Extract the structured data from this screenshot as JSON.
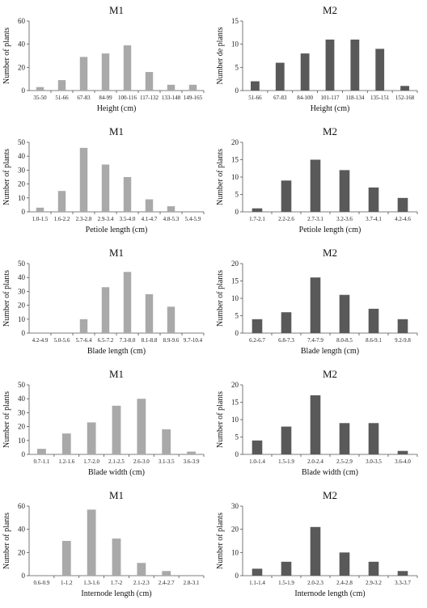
{
  "chart_data": [
    {
      "type": "bar",
      "title": "M1",
      "ylabel": "Number of plants",
      "xlabel": "Height (cm)",
      "ylim": [
        0,
        60
      ],
      "yticks": [
        0,
        20,
        40,
        60
      ],
      "color": "#a9a9a9",
      "categories": [
        "35-50",
        "51-66",
        "67-83",
        "84-99",
        "100-116",
        "117-132",
        "133-148",
        "149-165"
      ],
      "values": [
        3,
        9,
        29,
        32,
        39,
        16,
        5,
        5
      ]
    },
    {
      "type": "bar",
      "title": "M2",
      "ylabel": "Number de plants",
      "xlabel": "Height (cm)",
      "ylim": [
        0,
        15
      ],
      "yticks": [
        0,
        5,
        10,
        15
      ],
      "color": "#595959",
      "categories": [
        "51-66",
        "67-83",
        "84-100",
        "101-117",
        "118-134",
        "135-151",
        "152-168"
      ],
      "values": [
        2,
        6,
        8,
        11,
        11,
        9,
        1
      ]
    },
    {
      "type": "bar",
      "title": "M1",
      "ylabel": "Number of plants",
      "xlabel": "Petiole length (cm)",
      "ylim": [
        0,
        50
      ],
      "yticks": [
        0,
        10,
        20,
        30,
        40,
        50
      ],
      "color": "#a9a9a9",
      "categories": [
        "1.0-1.5",
        "1.6-2.2",
        "2.3-2.8",
        "2.9-3.4",
        "3.5-4.0",
        "4.1-4.7",
        "4.8-5.3",
        "5.4-5.9"
      ],
      "values": [
        3,
        15,
        46,
        34,
        25,
        9,
        4,
        0
      ]
    },
    {
      "type": "bar",
      "title": "M2",
      "ylabel": "Number of plants",
      "xlabel": "Petiole length (cm)",
      "ylim": [
        0,
        20
      ],
      "yticks": [
        0,
        5,
        10,
        15,
        20
      ],
      "color": "#595959",
      "categories": [
        "1.7-2.1",
        "2.2-2.6",
        "2.7-3.1",
        "3.2-3.6",
        "3.7-4.1",
        "4.2-4.6"
      ],
      "values": [
        1,
        9,
        15,
        12,
        7,
        4
      ]
    },
    {
      "type": "bar",
      "title": "M1",
      "ylabel": "Number of plants",
      "xlabel": "Blade length (cm)",
      "ylim": [
        0,
        50
      ],
      "yticks": [
        0,
        10,
        20,
        30,
        40,
        50
      ],
      "color": "#a9a9a9",
      "categories": [
        "4.2-4.9",
        "5.0-5.6",
        "5.7-6.4",
        "6.5-7.2",
        "7.3-8.0",
        "8.1-8.8",
        "8.9-9.6",
        "9.7-10.4"
      ],
      "values": [
        0,
        0,
        10,
        33,
        44,
        28,
        19,
        0
      ]
    },
    {
      "type": "bar",
      "title": "M2",
      "ylabel": "Number of plants",
      "xlabel": "Blade length (cm)",
      "ylim": [
        0,
        20
      ],
      "yticks": [
        0,
        5,
        10,
        15,
        20
      ],
      "color": "#595959",
      "categories": [
        "6.2-6.7",
        "6.8-7.3",
        "7.4-7.9",
        "8.0-8.5",
        "8.6-9.1",
        "9.2-9.8"
      ],
      "values": [
        4,
        6,
        16,
        11,
        7,
        4
      ]
    },
    {
      "type": "bar",
      "title": "M1",
      "ylabel": "Number of plants",
      "xlabel": "Blade width (cm)",
      "ylim": [
        0,
        50
      ],
      "yticks": [
        0,
        10,
        20,
        30,
        40,
        50
      ],
      "color": "#a9a9a9",
      "categories": [
        "0.7-1.1",
        "1.2-1.6",
        "1.7-2.0",
        "2.1-2.5",
        "2.6-3.0",
        "3.1-3.5",
        "3.6-3.9"
      ],
      "values": [
        4,
        15,
        23,
        35,
        40,
        18,
        2
      ]
    },
    {
      "type": "bar",
      "title": "M2",
      "ylabel": "Number of plants",
      "xlabel": "Blade width (cm)",
      "ylim": [
        0,
        20
      ],
      "yticks": [
        0,
        5,
        10,
        15,
        20
      ],
      "color": "#595959",
      "categories": [
        "1.0-1.4",
        "1.5-1.9",
        "2.0-2.4",
        "2.5-2.9",
        "3.0-3.5",
        "3.6-4.0"
      ],
      "values": [
        4,
        8,
        17,
        9,
        9,
        1
      ]
    },
    {
      "type": "bar",
      "title": "M1",
      "ylabel": "Number of plants",
      "xlabel": "Internode length (cm)",
      "ylim": [
        0,
        60
      ],
      "yticks": [
        0,
        20,
        40,
        60
      ],
      "color": "#a9a9a9",
      "categories": [
        "0.6-0.9",
        "1-1.2",
        "1.3-1.6",
        "1.7-2",
        "2.1-2.3",
        "2.4-2.7",
        "2.8-3.1"
      ],
      "values": [
        0,
        30,
        57,
        32,
        11,
        4,
        0
      ]
    },
    {
      "type": "bar",
      "title": "M2",
      "ylabel": "Number of plants",
      "xlabel": "Internode length (cm)",
      "ylim": [
        0,
        30
      ],
      "yticks": [
        0,
        10,
        20,
        30
      ],
      "color": "#595959",
      "categories": [
        "1.1-1.4",
        "1.5-1.9",
        "2.0-2.3",
        "2.4-2.8",
        "2.9-3.2",
        "3.3-3.7"
      ],
      "values": [
        3,
        6,
        21,
        10,
        6,
        2
      ]
    }
  ]
}
